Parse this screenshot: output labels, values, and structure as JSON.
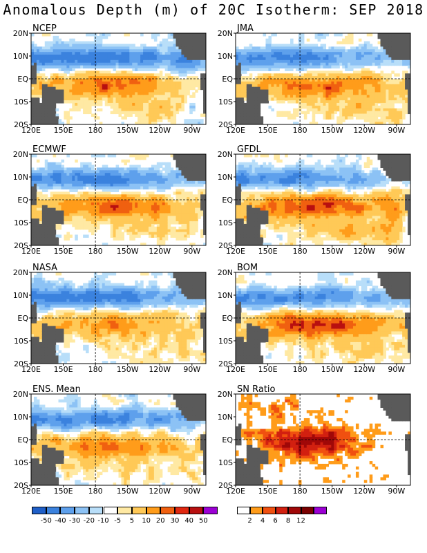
{
  "title": "Anomalous Depth (m) of 20C Isotherm: SEP 2018",
  "colors": {
    "land": "#5a5a5a",
    "anomaly_scale": [
      "#1f5fc8",
      "#3b82de",
      "#5ea0ec",
      "#8cc2f5",
      "#b8def9",
      "#ffffff",
      "#ffe9a3",
      "#ffc957",
      "#ff9c1a",
      "#f06010",
      "#e02810",
      "#b81010",
      "#8a0808",
      "#9b00d4"
    ],
    "sn_scale": [
      "#ffffff",
      "#ff9c1a",
      "#f05010",
      "#d22010",
      "#a00808",
      "#7a0000",
      "#9b00d4"
    ]
  },
  "panels": [
    {
      "label": "NCEP",
      "pattern": "ncep"
    },
    {
      "label": "JMA",
      "pattern": "jma"
    },
    {
      "label": "ECMWF",
      "pattern": "ecmwf"
    },
    {
      "label": "GFDL",
      "pattern": "gfdl"
    },
    {
      "label": "NASA",
      "pattern": "nasa"
    },
    {
      "label": "BOM",
      "pattern": "bom"
    },
    {
      "label": "ENS. Mean",
      "pattern": "ens"
    },
    {
      "label": "SN Ratio",
      "pattern": "sn"
    }
  ],
  "axes": {
    "x_ticks": [
      "120E",
      "150E",
      "180",
      "150W",
      "120W",
      "90W"
    ],
    "y_ticks": [
      "20N",
      "10N",
      "EQ",
      "10S",
      "20S"
    ]
  },
  "colorbar_anomaly": {
    "labels": [
      "-50",
      "-40",
      "-30",
      "-20",
      "-10",
      "-5",
      "5",
      "10",
      "20",
      "30",
      "40",
      "50"
    ]
  },
  "colorbar_sn": {
    "labels": [
      "2",
      "4",
      "6",
      "8",
      "12"
    ]
  }
}
